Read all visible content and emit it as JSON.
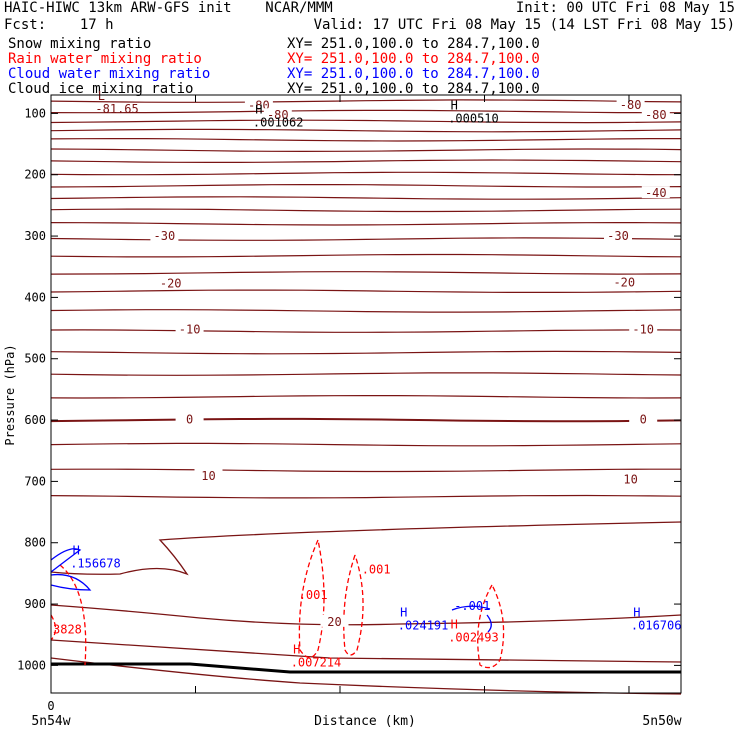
{
  "header": {
    "line1_left": "HAIC-HIWC 13km ARW-GFS init    NCAR/MMM",
    "line1_right": "Init: 00 UTC Fri 08 May 15",
    "line2_left": "Fcst:    17 h",
    "line2_right": "Valid: 17 UTC Fri 08 May 15 (14 LST Fri 08 May 15)"
  },
  "fields": [
    {
      "name": "Snow mixing ratio",
      "xy": "XY= 251.0,100.0 to 284.7,100.0",
      "color": "#000000"
    },
    {
      "name": "Rain water mixing ratio",
      "xy": "XY= 251.0,100.0 to 284.7,100.0",
      "color": "#ff0000"
    },
    {
      "name": "Cloud water mixing ratio",
      "xy": "XY= 251.0,100.0 to 284.7,100.0",
      "color": "#0000ff"
    },
    {
      "name": "Cloud ice mixing ratio",
      "xy": "XY= 251.0,100.0 to 284.7,100.0",
      "color": "#000000"
    }
  ],
  "chart_data": {
    "type": "contour",
    "xlabel": "Distance (km)",
    "ylabel": "Pressure (hPa)",
    "x_tick_labels": [
      "0"
    ],
    "x_end_labels": {
      "left": "5n54w",
      "right": "5n50w"
    },
    "y_ticks": [
      100,
      200,
      300,
      400,
      500,
      600,
      700,
      800,
      900,
      1000
    ],
    "ylim": [
      1045,
      70
    ],
    "colors": {
      "temperature": "#7a1414",
      "rain": "#ff0000",
      "cloud_water": "#0000ff",
      "ground": "#000000",
      "extrema_black": "#000000"
    },
    "isotherm_labels": [
      {
        "text": "-80",
        "x": 0.33,
        "p": 87
      },
      {
        "text": "-80",
        "x": 0.36,
        "p": 103
      },
      {
        "text": "-80",
        "x": 0.92,
        "p": 86
      },
      {
        "text": "-80",
        "x": 0.96,
        "p": 103
      },
      {
        "text": "-40",
        "x": 0.96,
        "p": 230
      },
      {
        "text": "-30",
        "x": 0.18,
        "p": 300
      },
      {
        "text": "-30",
        "x": 0.9,
        "p": 300
      },
      {
        "text": "-20",
        "x": 0.19,
        "p": 377
      },
      {
        "text": "-20",
        "x": 0.91,
        "p": 376
      },
      {
        "text": "-10",
        "x": 0.22,
        "p": 452
      },
      {
        "text": "-10",
        "x": 0.94,
        "p": 452
      },
      {
        "text": "0",
        "x": 0.22,
        "p": 599
      },
      {
        "text": "0",
        "x": 0.94,
        "p": 599
      },
      {
        "text": "10",
        "x": 0.25,
        "p": 691
      },
      {
        "text": "10",
        "x": 0.92,
        "p": 697
      },
      {
        "text": "20",
        "x": 0.45,
        "p": 929
      }
    ],
    "extrema": [
      {
        "mark": "L",
        "value": "-81.65",
        "x": 0.08,
        "p": 85,
        "color": "temperature"
      },
      {
        "mark": "H",
        "value": ".001062",
        "x": 0.33,
        "p": 107,
        "color": "extrema_black"
      },
      {
        "mark": "H",
        "value": ".000510",
        "x": 0.64,
        "p": 100,
        "color": "extrema_black"
      },
      {
        "mark": "H",
        "value": ".156678",
        "x": 0.04,
        "p": 826,
        "color": "cloud_water"
      },
      {
        "mark": "H",
        "value": ".024191",
        "x": 0.56,
        "p": 927,
        "color": "cloud_water"
      },
      {
        "mark": "H",
        "value": ".002493",
        "x": 0.64,
        "p": 946,
        "color": "rain"
      },
      {
        "mark": "H",
        "value": ".016706",
        "x": 0.93,
        "p": 927,
        "color": "cloud_water"
      },
      {
        "mark": "H",
        "value": ".007214",
        "x": 0.39,
        "p": 987,
        "color": "rain"
      }
    ],
    "rain_labels": [
      {
        "text": ".001",
        "x": 0.39,
        "p": 892
      },
      {
        "text": ".001",
        "x": 0.49,
        "p": 850
      },
      {
        "text": "3828",
        "x": 0.0,
        "p": 948
      }
    ],
    "cloud_labels": [
      {
        "text": "-.001",
        "x": 0.64,
        "p": 910
      }
    ]
  }
}
